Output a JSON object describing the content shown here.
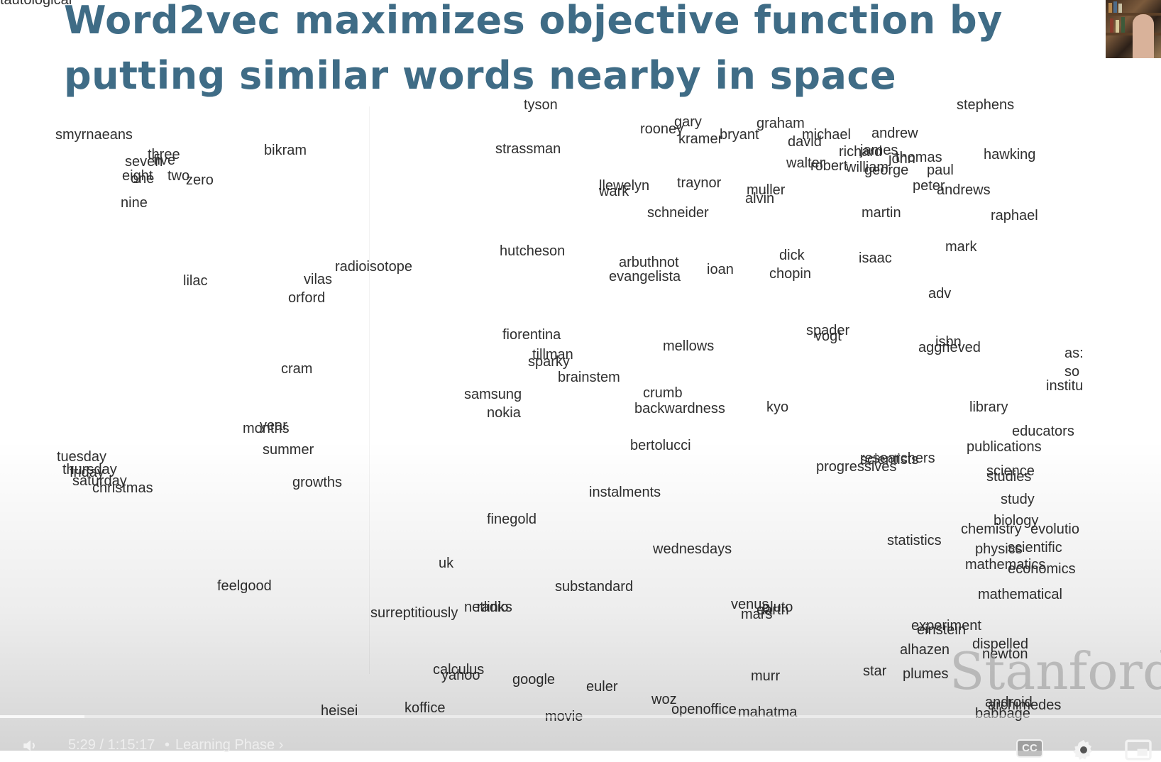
{
  "slide": {
    "title_line_1": "Word2vec maximizes objective function by",
    "title_line_2": "putting similar words nearby in space",
    "watermark": "Stanford"
  },
  "words": [
    "tyson",
    "stephens",
    "smyrnaeans",
    "bikram",
    "strassman",
    "rooney",
    "gary",
    "kramer",
    "bryant",
    "graham",
    "michael",
    "david",
    "andrew",
    "richard",
    "james",
    "john",
    "thomas",
    "walter",
    "robert",
    "william",
    "george",
    "paul",
    "hawking",
    "three",
    "seven",
    "five",
    "eight",
    "one",
    "two",
    "zero",
    "nine",
    "llewelyn",
    "wark",
    "traynor",
    "muller",
    "alvin",
    "peter",
    "andrews",
    "schneider",
    "martin",
    "raphael",
    "hutcheson",
    "mark",
    "radioisotope",
    "arbuthnot",
    "evangelista",
    "ioan",
    "dick",
    "chopin",
    "isaac",
    "lilac",
    "vilas",
    "orford",
    "adv",
    "fiorentina",
    "spader",
    "vogt",
    "isbn",
    "aggrieved",
    "tillman",
    "sparky",
    "mellows",
    "as:",
    "so",
    "institu",
    "cram",
    "brainstem",
    "samsung",
    "nokia",
    "crumb",
    "backwardness",
    "kyo",
    "library",
    "year",
    "months",
    "educators",
    "summer",
    "bertolucci",
    "publications",
    "tuesday",
    "thursday",
    "friday",
    "saturday",
    "christmas",
    "researchers",
    "scientists",
    "progressives",
    "science",
    "studies",
    "growths",
    "instalments",
    "study",
    "finegold",
    "biology",
    "chemistry",
    "evolutio",
    "statistics",
    "physics",
    "scientific",
    "wednesdays",
    "mathematics",
    "economics",
    "uk",
    "feelgood",
    "substandard",
    "mathematical",
    "venus",
    "pluto",
    "mars",
    "earth",
    "surreptitiously",
    "netlinks",
    "radio",
    "experiment",
    "einstein",
    "dispelled",
    "alhazen",
    "newton",
    "calculus",
    "yahoo",
    "google",
    "murr",
    "star",
    "plumes",
    "euler",
    "woz",
    "heisei",
    "koffice",
    "openoffice",
    "movie",
    "mahatma",
    "android",
    "archimedes",
    "babbage",
    "tautological"
  ],
  "player": {
    "time_display": "5:29 / 1:15:17",
    "chapter_label": "Learning Phase",
    "chapter_separator": "•",
    "chapter_chevron": "›",
    "cc_label": "CC",
    "progress_fraction": 0.073
  }
}
